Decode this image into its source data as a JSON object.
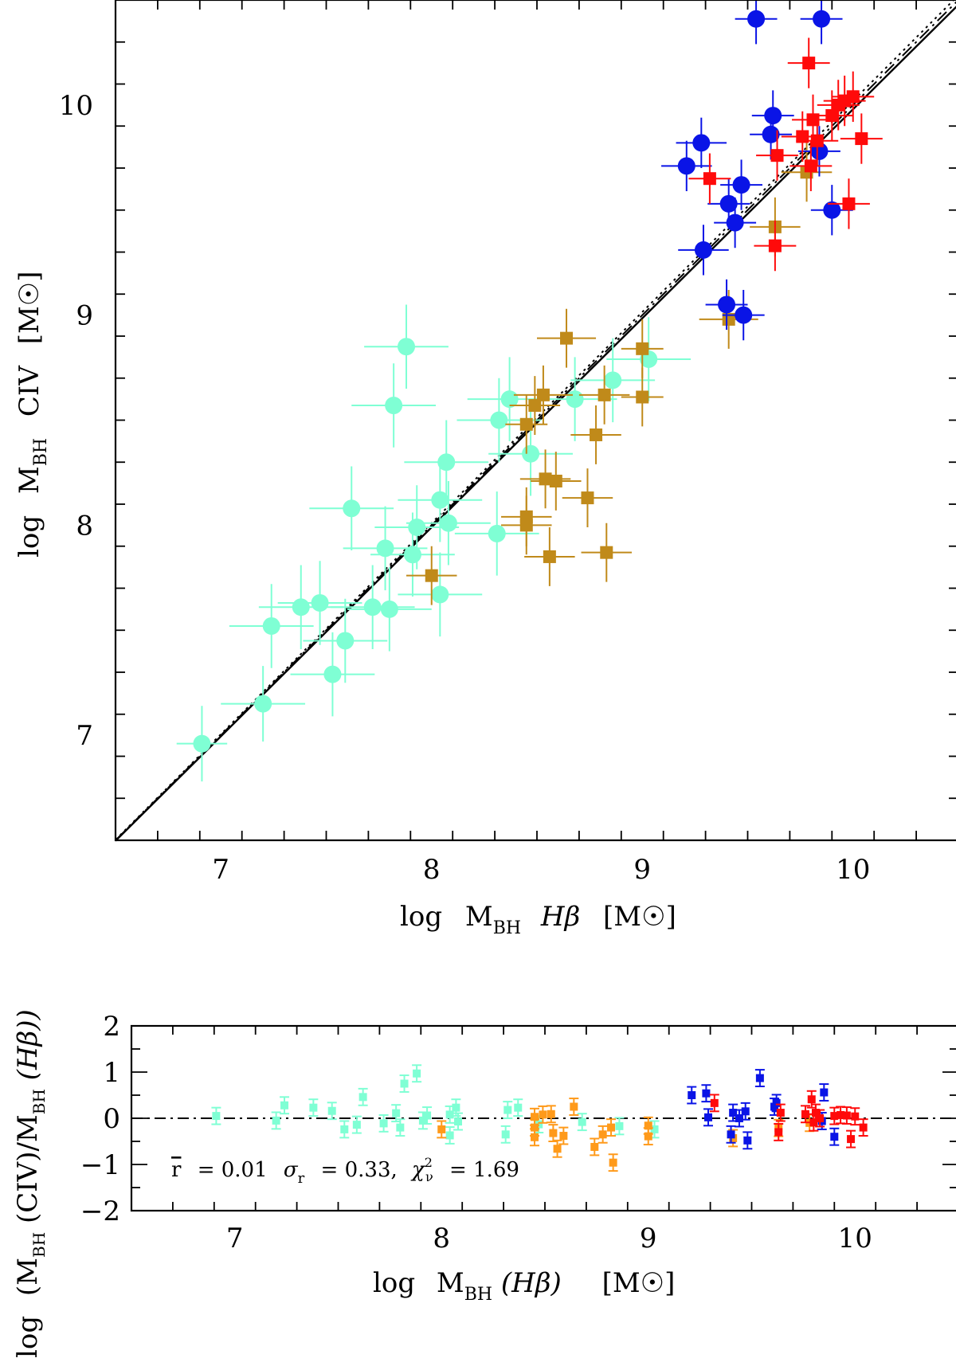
{
  "colors": {
    "cyan": "#7fffd4",
    "gold": "#c08a1a",
    "blue": "#0a14e6",
    "red": "#ff0a0a",
    "orange": "#ff9a1a"
  },
  "chart_data": [
    {
      "type": "scatter",
      "panel": "top",
      "xlabel": "log M_BH Hβ [M☉]",
      "ylabel": "log M_BH CIV [M☉]",
      "xlim": [
        6.5,
        10.5
      ],
      "ylim": [
        6.5,
        10.5
      ],
      "x_ticks": [
        "7",
        "8",
        "9",
        "10"
      ],
      "y_ticks": [
        "7",
        "8",
        "9",
        "10"
      ],
      "lines": [
        {
          "name": "fit",
          "style": "solid",
          "slope": 0.995,
          "intercept": 0.03
        },
        {
          "name": "one-to-one",
          "style": "dash-dot",
          "slope": 1.0,
          "intercept": 0.0
        },
        {
          "name": "alt-fit",
          "style": "dotted",
          "slope": 1.005,
          "intercept": -0.03
        }
      ],
      "series": [
        {
          "name": "cyan circles",
          "color_key": "cyan",
          "marker": "circle",
          "points": [
            [
              6.91,
              6.96,
              0.12,
              0.18
            ],
            [
              7.2,
              7.15,
              0.2,
              0.18
            ],
            [
              7.24,
              7.52,
              0.2,
              0.2
            ],
            [
              7.38,
              7.61,
              0.2,
              0.2
            ],
            [
              7.47,
              7.63,
              0.2,
              0.2
            ],
            [
              7.53,
              7.29,
              0.2,
              0.2
            ],
            [
              7.59,
              7.45,
              0.2,
              0.2
            ],
            [
              7.62,
              8.08,
              0.2,
              0.2
            ],
            [
              7.72,
              7.61,
              0.2,
              0.2
            ],
            [
              7.78,
              7.89,
              0.2,
              0.2
            ],
            [
              7.8,
              7.6,
              0.2,
              0.2
            ],
            [
              7.82,
              8.57,
              0.2,
              0.2
            ],
            [
              7.88,
              8.85,
              0.2,
              0.2
            ],
            [
              7.91,
              7.86,
              0.2,
              0.2
            ],
            [
              7.93,
              7.99,
              0.2,
              0.2
            ],
            [
              8.04,
              8.12,
              0.2,
              0.2
            ],
            [
              8.04,
              7.67,
              0.2,
              0.2
            ],
            [
              8.07,
              8.3,
              0.2,
              0.2
            ],
            [
              8.08,
              8.01,
              0.2,
              0.2
            ],
            [
              8.31,
              7.96,
              0.2,
              0.2
            ],
            [
              8.32,
              8.5,
              0.2,
              0.2
            ],
            [
              8.37,
              8.6,
              0.2,
              0.2
            ],
            [
              8.47,
              8.34,
              0.2,
              0.2
            ],
            [
              8.68,
              8.6,
              0.2,
              0.2
            ],
            [
              8.86,
              8.69,
              0.2,
              0.2
            ],
            [
              9.03,
              8.79,
              0.2,
              0.2
            ]
          ]
        },
        {
          "name": "gold squares",
          "color_key": "gold",
          "marker": "square",
          "points": [
            [
              8.0,
              7.76,
              0.12,
              0.14
            ],
            [
              8.45,
              8.48,
              0.1,
              0.14
            ],
            [
              8.45,
              8.04,
              0.12,
              0.14
            ],
            [
              8.45,
              8.0,
              0.12,
              0.14
            ],
            [
              8.49,
              8.57,
              0.12,
              0.14
            ],
            [
              8.53,
              8.62,
              0.14,
              0.14
            ],
            [
              8.54,
              8.22,
              0.12,
              0.14
            ],
            [
              8.56,
              7.85,
              0.12,
              0.14
            ],
            [
              8.59,
              8.21,
              0.12,
              0.14
            ],
            [
              8.64,
              8.89,
              0.14,
              0.14
            ],
            [
              8.74,
              8.13,
              0.12,
              0.14
            ],
            [
              8.78,
              8.43,
              0.12,
              0.14
            ],
            [
              8.82,
              8.62,
              0.12,
              0.14
            ],
            [
              8.83,
              7.87,
              0.12,
              0.14
            ],
            [
              9.0,
              8.61,
              0.1,
              0.14
            ],
            [
              9.0,
              8.84,
              0.1,
              0.14
            ],
            [
              9.41,
              8.98,
              0.14,
              0.14
            ],
            [
              9.63,
              9.42,
              0.12,
              0.14
            ],
            [
              9.78,
              9.68,
              0.12,
              0.14
            ]
          ]
        },
        {
          "name": "blue circles",
          "color_key": "blue",
          "marker": "circle",
          "points": [
            [
              9.21,
              9.71,
              0.12,
              0.12
            ],
            [
              9.28,
              9.82,
              0.12,
              0.12
            ],
            [
              9.29,
              9.31,
              0.12,
              0.12
            ],
            [
              9.4,
              9.05,
              0.1,
              0.12
            ],
            [
              9.41,
              9.53,
              0.1,
              0.12
            ],
            [
              9.44,
              9.44,
              0.1,
              0.12
            ],
            [
              9.47,
              9.62,
              0.1,
              0.12
            ],
            [
              9.48,
              9.0,
              0.1,
              0.12
            ],
            [
              9.54,
              10.41,
              0.1,
              0.12
            ],
            [
              9.61,
              9.86,
              0.1,
              0.12
            ],
            [
              9.62,
              9.95,
              0.1,
              0.12
            ],
            [
              9.84,
              9.78,
              0.1,
              0.12
            ],
            [
              9.85,
              10.41,
              0.1,
              0.12
            ],
            [
              9.9,
              9.5,
              0.1,
              0.12
            ]
          ]
        },
        {
          "name": "red squares",
          "color_key": "red",
          "marker": "square",
          "points": [
            [
              9.32,
              9.65,
              0.1,
              0.12
            ],
            [
              9.63,
              9.33,
              0.1,
              0.12
            ],
            [
              9.64,
              9.76,
              0.1,
              0.12
            ],
            [
              9.76,
              9.85,
              0.1,
              0.12
            ],
            [
              9.79,
              10.2,
              0.1,
              0.12
            ],
            [
              9.8,
              9.71,
              0.1,
              0.12
            ],
            [
              9.81,
              9.93,
              0.1,
              0.12
            ],
            [
              9.83,
              9.83,
              0.1,
              0.12
            ],
            [
              9.9,
              9.95,
              0.1,
              0.12
            ],
            [
              9.93,
              10.0,
              0.1,
              0.12
            ],
            [
              9.96,
              10.02,
              0.1,
              0.12
            ],
            [
              9.98,
              9.53,
              0.1,
              0.12
            ],
            [
              10.0,
              10.04,
              0.1,
              0.12
            ],
            [
              10.04,
              9.84,
              0.1,
              0.12
            ]
          ]
        }
      ]
    },
    {
      "type": "scatter",
      "panel": "bottom",
      "xlabel": "log M_BH(Hβ) [M☉]",
      "ylabel": "log (M_BH(CIV)/M_BH(Hβ))",
      "xlim": [
        6.5,
        10.5
      ],
      "ylim": [
        -2,
        2
      ],
      "x_ticks": [
        "7",
        "8",
        "9",
        "10"
      ],
      "y_ticks": [
        "−2",
        "−1",
        "0",
        "1",
        "2"
      ],
      "reference_line": 0,
      "series": [
        {
          "name": "cyan residuals",
          "color_key": "cyan",
          "points": [
            [
              6.91,
              0.05
            ],
            [
              7.2,
              -0.05
            ],
            [
              7.24,
              0.28
            ],
            [
              7.38,
              0.23
            ],
            [
              7.47,
              0.16
            ],
            [
              7.53,
              -0.24
            ],
            [
              7.59,
              -0.14
            ],
            [
              7.62,
              0.46
            ],
            [
              7.72,
              -0.11
            ],
            [
              7.78,
              0.11
            ],
            [
              7.8,
              -0.2
            ],
            [
              7.82,
              0.75
            ],
            [
              7.88,
              0.97
            ],
            [
              7.91,
              -0.05
            ],
            [
              7.93,
              0.06
            ],
            [
              8.04,
              0.08
            ],
            [
              8.04,
              -0.37
            ],
            [
              8.07,
              0.23
            ],
            [
              8.08,
              -0.07
            ],
            [
              8.31,
              -0.35
            ],
            [
              8.32,
              0.18
            ],
            [
              8.37,
              0.23
            ],
            [
              8.47,
              -0.13
            ],
            [
              8.68,
              -0.08
            ],
            [
              8.86,
              -0.17
            ],
            [
              9.03,
              -0.24
            ]
          ]
        },
        {
          "name": "orange residuals",
          "color_key": "orange",
          "points": [
            [
              8.0,
              -0.24
            ],
            [
              8.45,
              0.03
            ],
            [
              8.45,
              -0.41
            ],
            [
              8.45,
              -0.2
            ],
            [
              8.49,
              0.08
            ],
            [
              8.53,
              0.09
            ],
            [
              8.54,
              -0.32
            ],
            [
              8.56,
              -0.66
            ],
            [
              8.59,
              -0.38
            ],
            [
              8.64,
              0.25
            ],
            [
              8.74,
              -0.62
            ],
            [
              8.78,
              -0.35
            ],
            [
              8.82,
              -0.2
            ],
            [
              8.83,
              -0.96
            ],
            [
              9.0,
              -0.39
            ],
            [
              9.0,
              -0.16
            ],
            [
              9.41,
              -0.43
            ],
            [
              9.63,
              -0.21
            ],
            [
              9.78,
              -0.1
            ]
          ]
        },
        {
          "name": "blue residuals",
          "color_key": "blue",
          "points": [
            [
              9.21,
              0.5
            ],
            [
              9.28,
              0.54
            ],
            [
              9.29,
              0.02
            ],
            [
              9.4,
              -0.35
            ],
            [
              9.41,
              0.12
            ],
            [
              9.44,
              0.0
            ],
            [
              9.47,
              0.15
            ],
            [
              9.48,
              -0.48
            ],
            [
              9.54,
              0.87
            ],
            [
              9.61,
              0.25
            ],
            [
              9.62,
              0.33
            ],
            [
              9.84,
              -0.06
            ],
            [
              9.85,
              0.56
            ],
            [
              9.9,
              -0.4
            ]
          ]
        },
        {
          "name": "red residuals",
          "color_key": "red",
          "points": [
            [
              9.32,
              0.33
            ],
            [
              9.63,
              -0.3
            ],
            [
              9.64,
              0.12
            ],
            [
              9.76,
              0.09
            ],
            [
              9.79,
              0.41
            ],
            [
              9.8,
              -0.09
            ],
            [
              9.81,
              0.12
            ],
            [
              9.83,
              0.0
            ],
            [
              9.9,
              0.05
            ],
            [
              9.93,
              0.07
            ],
            [
              9.96,
              0.06
            ],
            [
              9.98,
              -0.45
            ],
            [
              10.0,
              0.04
            ],
            [
              10.04,
              -0.2
            ]
          ]
        }
      ]
    }
  ],
  "annotation": {
    "r_label": "r",
    "r_value": "= 0.01",
    "sigma_label": "σ",
    "sigma_sub": "r",
    "sigma_value": "= 0.33,",
    "chi_label": "χ",
    "chi_sup": "2",
    "chi_sub": "ν",
    "chi_value": "= 1.69"
  },
  "labels": {
    "top_x_log": "log",
    "top_x_M": "M",
    "top_x_sub": "BH",
    "top_x_line": "Hβ",
    "top_x_unit": "[M☉]",
    "top_y_log": "log",
    "top_y_M": "M",
    "top_y_sub": "BH",
    "top_y_line": "CIV",
    "top_y_unit": "[M☉]",
    "bot_x_log": "log",
    "bot_x_M": "M",
    "bot_x_sub": "BH",
    "bot_x_line": "(Hβ)",
    "bot_x_unit": "[M☉]",
    "bot_y_log": "log",
    "bot_y_open": "(M",
    "bot_y_sub1": "BH",
    "bot_y_mid": "(CIV)/M",
    "bot_y_sub2": "BH",
    "bot_y_close": "(Hβ))"
  }
}
